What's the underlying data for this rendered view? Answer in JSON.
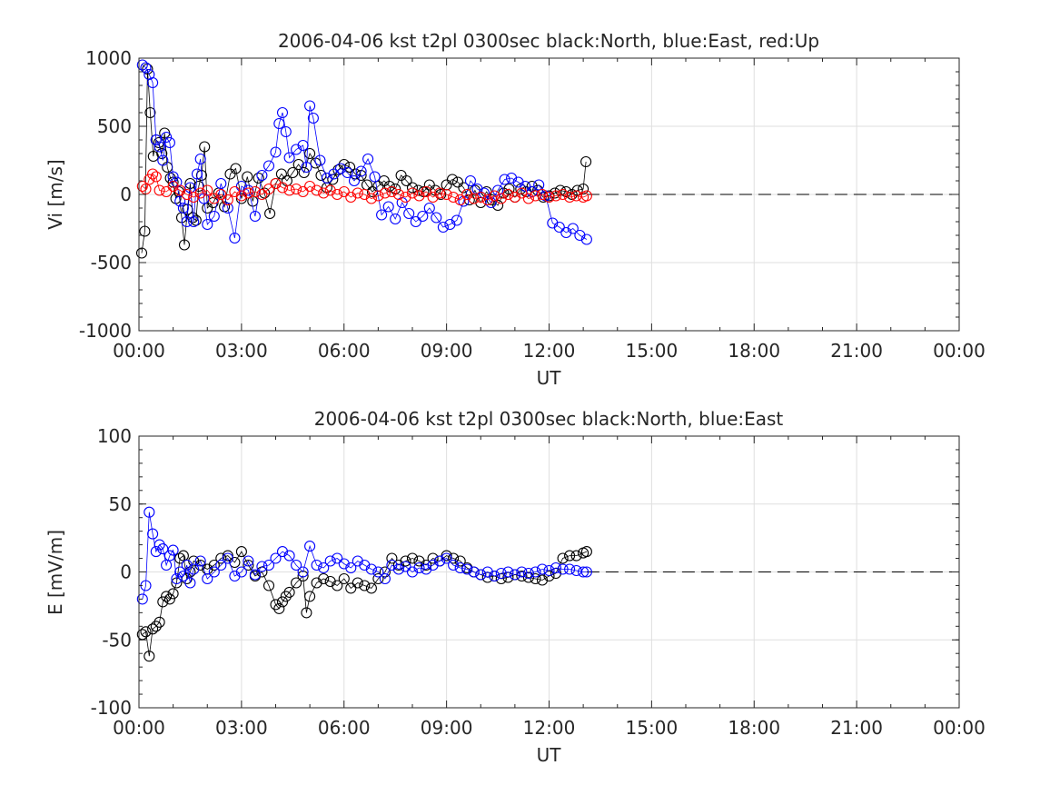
{
  "chart_data": [
    {
      "type": "scatter",
      "title": "2006-04-06 kst t2pl 0300sec black:North, blue:East, red:Up",
      "xlabel": "UT",
      "ylabel": "Vi [m/s]",
      "x_unit": "hours UT",
      "xlim": [
        0,
        24
      ],
      "ylim": [
        -1000,
        1000
      ],
      "xticks": [
        0,
        3,
        6,
        9,
        12,
        15,
        18,
        21,
        24
      ],
      "xtick_labels": [
        "00:00",
        "03:00",
        "06:00",
        "09:00",
        "12:00",
        "15:00",
        "18:00",
        "21:00",
        "00:00"
      ],
      "yticks": [
        -1000,
        -500,
        0,
        500,
        1000
      ],
      "ytick_labels": [
        "-1000",
        "-500",
        "0",
        "500",
        "1000"
      ],
      "grid": true,
      "reference_line": {
        "y": 0,
        "x_from": 13.1,
        "x_to": 24,
        "style": "dashed"
      },
      "series": [
        {
          "key": "north",
          "color": "#000000",
          "marker": "open-circle",
          "x": [
            0.08,
            0.17,
            0.25,
            0.33,
            0.42,
            0.5,
            0.58,
            0.67,
            0.75,
            0.83,
            0.92,
            1.0,
            1.08,
            1.17,
            1.25,
            1.33,
            1.42,
            1.5,
            1.58,
            1.67,
            1.75,
            1.83,
            1.92,
            2.0,
            2.17,
            2.33,
            2.5,
            2.67,
            2.83,
            3.0,
            3.17,
            3.33,
            3.5,
            3.67,
            3.83,
            4.0,
            4.17,
            4.33,
            4.5,
            4.67,
            4.83,
            5.0,
            5.17,
            5.33,
            5.5,
            5.67,
            5.83,
            6.0,
            6.17,
            6.33,
            6.5,
            6.67,
            6.83,
            7.0,
            7.17,
            7.33,
            7.5,
            7.67,
            7.83,
            8.0,
            8.17,
            8.33,
            8.5,
            8.67,
            8.83,
            9.0,
            9.17,
            9.33,
            9.5,
            9.67,
            9.83,
            10.0,
            10.17,
            10.33,
            10.5,
            10.67,
            10.83,
            11.0,
            11.17,
            11.33,
            11.5,
            11.67,
            11.83,
            12.0,
            12.17,
            12.33,
            12.5,
            12.67,
            12.83,
            13.0,
            13.08
          ],
          "values": [
            -430,
            -270,
            920,
            600,
            280,
            400,
            380,
            300,
            450,
            200,
            120,
            90,
            -30,
            20,
            -170,
            -370,
            -110,
            80,
            -170,
            -190,
            60,
            140,
            350,
            -100,
            -60,
            10,
            -90,
            150,
            190,
            -30,
            130,
            -50,
            120,
            10,
            -140,
            80,
            150,
            100,
            160,
            220,
            160,
            300,
            230,
            140,
            50,
            110,
            180,
            220,
            200,
            150,
            140,
            70,
            20,
            60,
            100,
            60,
            40,
            140,
            100,
            50,
            30,
            20,
            70,
            30,
            0,
            70,
            110,
            90,
            50,
            -40,
            30,
            -60,
            20,
            -40,
            -80,
            10,
            40,
            -20,
            40,
            20,
            60,
            30,
            -20,
            -10,
            10,
            30,
            20,
            0,
            30,
            40,
            240
          ]
        },
        {
          "key": "east",
          "color": "#0000ff",
          "marker": "open-circle",
          "x": [
            0.1,
            0.2,
            0.3,
            0.4,
            0.5,
            0.6,
            0.7,
            0.8,
            0.9,
            1.0,
            1.1,
            1.2,
            1.3,
            1.4,
            1.5,
            1.6,
            1.7,
            1.8,
            1.9,
            2.0,
            2.2,
            2.4,
            2.6,
            2.8,
            3.0,
            3.2,
            3.4,
            3.6,
            3.8,
            4.0,
            4.1,
            4.2,
            4.3,
            4.4,
            4.6,
            4.8,
            4.9,
            5.0,
            5.1,
            5.3,
            5.5,
            5.7,
            5.9,
            6.1,
            6.3,
            6.5,
            6.7,
            6.9,
            7.1,
            7.3,
            7.5,
            7.7,
            7.9,
            8.1,
            8.3,
            8.5,
            8.7,
            8.9,
            9.1,
            9.3,
            9.5,
            9.7,
            9.9,
            10.1,
            10.3,
            10.5,
            10.7,
            10.9,
            11.1,
            11.3,
            11.5,
            11.7,
            11.9,
            12.1,
            12.3,
            12.5,
            12.7,
            12.9,
            13.1
          ],
          "values": [
            950,
            930,
            880,
            820,
            400,
            350,
            250,
            420,
            380,
            130,
            90,
            -50,
            -100,
            -200,
            50,
            -200,
            150,
            260,
            -30,
            -220,
            -160,
            80,
            -100,
            -320,
            60,
            30,
            -160,
            140,
            210,
            310,
            520,
            600,
            460,
            270,
            330,
            360,
            200,
            650,
            560,
            250,
            120,
            150,
            190,
            160,
            100,
            170,
            260,
            130,
            -150,
            -90,
            -180,
            -60,
            -140,
            -200,
            -160,
            -100,
            -170,
            -240,
            -220,
            -190,
            -50,
            100,
            40,
            10,
            -60,
            30,
            110,
            120,
            90,
            60,
            20,
            70,
            -10,
            -210,
            -240,
            -280,
            -250,
            -300,
            -330
          ]
        },
        {
          "key": "up",
          "color": "#ff0000",
          "marker": "open-circle",
          "x": [
            0.1,
            0.2,
            0.3,
            0.4,
            0.5,
            0.6,
            0.8,
            1.0,
            1.2,
            1.4,
            1.6,
            1.8,
            2.0,
            2.2,
            2.4,
            2.6,
            2.8,
            3.0,
            3.2,
            3.4,
            3.6,
            3.8,
            4.0,
            4.2,
            4.4,
            4.6,
            4.8,
            5.0,
            5.2,
            5.4,
            5.6,
            5.8,
            6.0,
            6.2,
            6.4,
            6.6,
            6.8,
            7.0,
            7.2,
            7.4,
            7.6,
            7.8,
            8.0,
            8.2,
            8.4,
            8.6,
            8.8,
            9.0,
            9.2,
            9.4,
            9.6,
            9.8,
            10.0,
            10.2,
            10.4,
            10.6,
            10.8,
            11.0,
            11.2,
            11.4,
            11.6,
            11.8,
            12.0,
            12.2,
            12.4,
            12.6,
            12.8,
            13.0,
            13.1
          ],
          "values": [
            60,
            40,
            110,
            150,
            130,
            30,
            20,
            60,
            30,
            0,
            -20,
            10,
            30,
            -30,
            0,
            -40,
            20,
            -10,
            10,
            20,
            0,
            40,
            80,
            50,
            30,
            40,
            20,
            60,
            30,
            10,
            30,
            0,
            20,
            -20,
            10,
            0,
            -30,
            -10,
            10,
            20,
            0,
            -20,
            10,
            -10,
            20,
            -20,
            10,
            0,
            -20,
            -40,
            0,
            -30,
            -20,
            -40,
            -10,
            -30,
            0,
            -20,
            10,
            -30,
            -10,
            0,
            -20,
            -10,
            0,
            -20,
            -10,
            -20,
            -10
          ]
        }
      ]
    },
    {
      "type": "scatter",
      "title": "2006-04-06 kst t2pl 0300sec black:North, blue:East",
      "xlabel": "UT",
      "ylabel": "E [mV/m]",
      "x_unit": "hours UT",
      "xlim": [
        0,
        24
      ],
      "ylim": [
        -100,
        100
      ],
      "xticks": [
        0,
        3,
        6,
        9,
        12,
        15,
        18,
        21,
        24
      ],
      "xtick_labels": [
        "00:00",
        "03:00",
        "06:00",
        "09:00",
        "12:00",
        "15:00",
        "18:00",
        "21:00",
        "00:00"
      ],
      "yticks": [
        -100,
        -50,
        0,
        50,
        100
      ],
      "ytick_labels": [
        "-100",
        "-50",
        "0",
        "50",
        "100"
      ],
      "grid": true,
      "reference_line": {
        "y": 0,
        "x_from": 13.1,
        "x_to": 24,
        "style": "dashed"
      },
      "series": [
        {
          "key": "north",
          "color": "#000000",
          "marker": "open-circle",
          "x": [
            0.1,
            0.2,
            0.3,
            0.4,
            0.5,
            0.6,
            0.7,
            0.8,
            0.9,
            1.0,
            1.1,
            1.2,
            1.3,
            1.4,
            1.5,
            1.6,
            1.8,
            2.0,
            2.2,
            2.4,
            2.6,
            2.8,
            3.0,
            3.2,
            3.4,
            3.6,
            3.8,
            4.0,
            4.1,
            4.2,
            4.3,
            4.4,
            4.6,
            4.8,
            4.9,
            5.0,
            5.2,
            5.4,
            5.6,
            5.8,
            6.0,
            6.2,
            6.4,
            6.6,
            6.8,
            7.0,
            7.2,
            7.4,
            7.6,
            7.8,
            8.0,
            8.2,
            8.4,
            8.6,
            8.8,
            9.0,
            9.2,
            9.4,
            9.6,
            9.8,
            10.0,
            10.2,
            10.4,
            10.6,
            10.8,
            11.0,
            11.2,
            11.4,
            11.6,
            11.8,
            12.0,
            12.2,
            12.4,
            12.6,
            12.8,
            13.0,
            13.1
          ],
          "values": [
            -46,
            -44,
            -62,
            -42,
            -40,
            -37,
            -22,
            -18,
            -20,
            -16,
            -8,
            10,
            12,
            -5,
            0,
            8,
            5,
            2,
            5,
            10,
            12,
            7,
            15,
            5,
            -3,
            0,
            -10,
            -24,
            -27,
            -22,
            -18,
            -15,
            -8,
            -3,
            -30,
            -18,
            -8,
            -5,
            -7,
            -10,
            -5,
            -12,
            -8,
            -10,
            -12,
            -5,
            0,
            10,
            5,
            8,
            10,
            8,
            5,
            10,
            8,
            12,
            10,
            8,
            3,
            0,
            -2,
            -4,
            -3,
            -5,
            -4,
            -2,
            -3,
            -4,
            -5,
            -6,
            -3,
            -1,
            10,
            12,
            12,
            14,
            15
          ]
        },
        {
          "key": "east",
          "color": "#0000ff",
          "marker": "open-circle",
          "x": [
            0.1,
            0.2,
            0.3,
            0.4,
            0.5,
            0.6,
            0.7,
            0.8,
            0.9,
            1.0,
            1.1,
            1.2,
            1.3,
            1.4,
            1.5,
            1.6,
            1.8,
            2.0,
            2.2,
            2.4,
            2.6,
            2.8,
            3.0,
            3.2,
            3.4,
            3.6,
            3.8,
            4.0,
            4.2,
            4.4,
            4.6,
            4.8,
            5.0,
            5.2,
            5.4,
            5.6,
            5.8,
            6.0,
            6.2,
            6.4,
            6.6,
            6.8,
            7.0,
            7.2,
            7.4,
            7.6,
            7.8,
            8.0,
            8.2,
            8.4,
            8.6,
            8.8,
            9.0,
            9.2,
            9.4,
            9.6,
            9.8,
            10.0,
            10.2,
            10.4,
            10.6,
            10.8,
            11.0,
            11.2,
            11.4,
            11.6,
            11.8,
            12.0,
            12.2,
            12.4,
            12.6,
            12.8,
            13.0,
            13.1
          ],
          "values": [
            -20,
            -10,
            44,
            28,
            15,
            20,
            17,
            5,
            12,
            16,
            -5,
            0,
            -3,
            5,
            -8,
            2,
            8,
            -5,
            0,
            5,
            10,
            -3,
            0,
            8,
            -2,
            4,
            5,
            10,
            15,
            12,
            5,
            0,
            19,
            5,
            3,
            8,
            10,
            6,
            3,
            8,
            5,
            2,
            0,
            -5,
            5,
            2,
            4,
            0,
            3,
            2,
            5,
            8,
            10,
            5,
            3,
            2,
            0,
            -2,
            0,
            -3,
            -1,
            0,
            -2,
            0,
            -1,
            0,
            2,
            1,
            3,
            2,
            2,
            1,
            0,
            0
          ]
        }
      ]
    }
  ]
}
